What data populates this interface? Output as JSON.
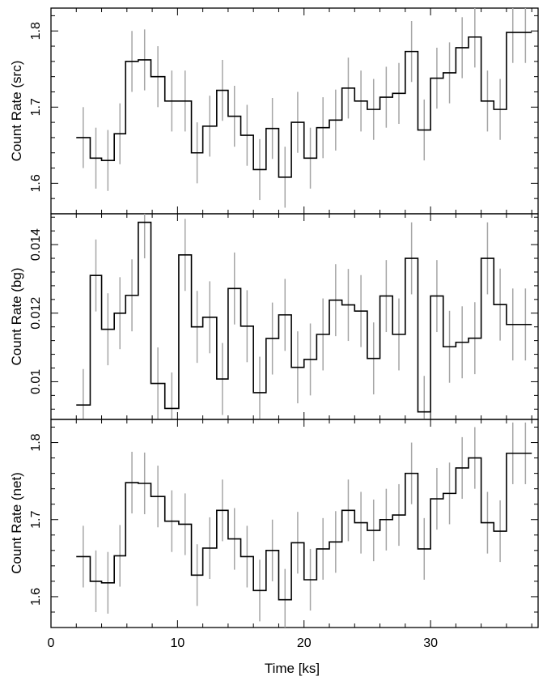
{
  "chart_data": [
    {
      "type": "step",
      "ylabel": "Count Rate (src)",
      "ylim": [
        1.56,
        1.83
      ],
      "yticks": [
        1.6,
        1.7,
        1.8
      ],
      "ytick_labels": [
        "1.6",
        "1.7",
        "1.8"
      ],
      "xlim": [
        0,
        38.5
      ],
      "bin_edges": [
        2.0,
        3.1,
        4.0,
        5.0,
        5.9,
        6.9,
        7.9,
        9.0,
        10.1,
        11.1,
        12.0,
        13.1,
        14.0,
        15.0,
        16.0,
        17.0,
        18.0,
        19.0,
        20.0,
        21.0,
        22.0,
        23.0,
        24.0,
        25.0,
        26.0,
        27.0,
        28.0,
        29.0,
        30.0,
        31.0,
        32.0,
        33.0,
        34.0,
        35.0,
        36.0,
        37.0,
        38.0
      ],
      "values": [
        1.66,
        1.633,
        1.63,
        1.665,
        1.76,
        1.762,
        1.74,
        1.708,
        1.708,
        1.64,
        1.675,
        1.722,
        1.688,
        1.663,
        1.618,
        1.672,
        1.608,
        1.68,
        1.633,
        1.673,
        1.683,
        1.725,
        1.708,
        1.697,
        1.713,
        1.718,
        1.773,
        1.67,
        1.738,
        1.745,
        1.778,
        1.792,
        1.708,
        1.697,
        1.798,
        1.798
      ],
      "errors": [
        0.04,
        0.04,
        0.04,
        0.04,
        0.04,
        0.04,
        0.04,
        0.04,
        0.04,
        0.04,
        0.04,
        0.04,
        0.04,
        0.04,
        0.04,
        0.04,
        0.04,
        0.04,
        0.04,
        0.04,
        0.04,
        0.04,
        0.04,
        0.04,
        0.04,
        0.04,
        0.04,
        0.04,
        0.04,
        0.04,
        0.04,
        0.04,
        0.04,
        0.04,
        0.04,
        0.04
      ]
    },
    {
      "type": "step",
      "ylabel": "Count Rate (bg)",
      "ylim": [
        0.0089,
        0.0149
      ],
      "yticks": [
        0.01,
        0.012,
        0.014
      ],
      "ytick_labels": [
        "0.01",
        "0.012",
        "0.014"
      ],
      "xlim": [
        0,
        38.5
      ],
      "bin_edges": [
        2.0,
        3.1,
        4.0,
        5.0,
        5.9,
        6.9,
        7.9,
        9.0,
        10.1,
        11.1,
        12.0,
        13.1,
        14.0,
        15.0,
        16.0,
        17.0,
        18.0,
        19.0,
        20.0,
        21.0,
        22.0,
        23.0,
        24.0,
        25.0,
        26.0,
        27.0,
        28.0,
        29.0,
        30.0,
        31.0,
        32.0,
        33.0,
        34.0,
        35.0,
        36.0,
        37.0,
        38.0
      ],
      "values": [
        0.00932,
        0.0131,
        0.01153,
        0.012,
        0.01252,
        0.01465,
        0.00995,
        0.00922,
        0.0137,
        0.0116,
        0.01188,
        0.01008,
        0.01272,
        0.01162,
        0.00968,
        0.01126,
        0.01195,
        0.01042,
        0.01065,
        0.01138,
        0.01238,
        0.01224,
        0.01206,
        0.01068,
        0.0125,
        0.01138,
        0.0136,
        0.00912,
        0.0125,
        0.01102,
        0.01115,
        0.01127,
        0.0136,
        0.01225,
        0.01167,
        0.01167
      ],
      "errors": [
        0.00105,
        0.00105,
        0.00105,
        0.00105,
        0.00105,
        0.00105,
        0.00105,
        0.00105,
        0.00105,
        0.00105,
        0.00105,
        0.00105,
        0.00105,
        0.00105,
        0.00105,
        0.00105,
        0.00105,
        0.00105,
        0.00105,
        0.00105,
        0.00105,
        0.00105,
        0.00105,
        0.00105,
        0.00105,
        0.00105,
        0.00105,
        0.00105,
        0.00105,
        0.00105,
        0.00105,
        0.00105,
        0.00105,
        0.00105,
        0.00105,
        0.00105
      ]
    },
    {
      "type": "step",
      "ylabel": "Count Rate (net)",
      "xlabel": "Time [ks]",
      "ylim": [
        1.56,
        1.83
      ],
      "yticks": [
        1.6,
        1.7,
        1.8
      ],
      "ytick_labels": [
        "1.6",
        "1.7",
        "1.8"
      ],
      "xlim": [
        0,
        38.5
      ],
      "xticks": [
        0,
        10,
        20,
        30
      ],
      "xtick_labels": [
        "0",
        "10",
        "20",
        "30"
      ],
      "bin_edges": [
        2.0,
        3.1,
        4.0,
        5.0,
        5.9,
        6.9,
        7.9,
        9.0,
        10.1,
        11.1,
        12.0,
        13.1,
        14.0,
        15.0,
        16.0,
        17.0,
        18.0,
        19.0,
        20.0,
        21.0,
        22.0,
        23.0,
        24.0,
        25.0,
        26.0,
        27.0,
        28.0,
        29.0,
        30.0,
        31.0,
        32.0,
        33.0,
        34.0,
        35.0,
        36.0,
        37.0,
        38.0
      ],
      "values": [
        1.652,
        1.62,
        1.618,
        1.653,
        1.748,
        1.747,
        1.73,
        1.698,
        1.694,
        1.628,
        1.663,
        1.712,
        1.675,
        1.652,
        1.608,
        1.66,
        1.596,
        1.67,
        1.622,
        1.662,
        1.671,
        1.712,
        1.696,
        1.686,
        1.7,
        1.706,
        1.76,
        1.662,
        1.727,
        1.734,
        1.767,
        1.78,
        1.696,
        1.685,
        1.786,
        1.786
      ],
      "errors": [
        0.04,
        0.04,
        0.04,
        0.04,
        0.04,
        0.04,
        0.04,
        0.04,
        0.04,
        0.04,
        0.04,
        0.04,
        0.04,
        0.04,
        0.04,
        0.04,
        0.04,
        0.04,
        0.04,
        0.04,
        0.04,
        0.04,
        0.04,
        0.04,
        0.04,
        0.04,
        0.04,
        0.04,
        0.04,
        0.04,
        0.04,
        0.04,
        0.04,
        0.04,
        0.04,
        0.04
      ]
    }
  ],
  "colors": {
    "step_line": "#000000",
    "error_bars": "#a6a6a6",
    "frame": "#000000",
    "background": "#ffffff"
  }
}
